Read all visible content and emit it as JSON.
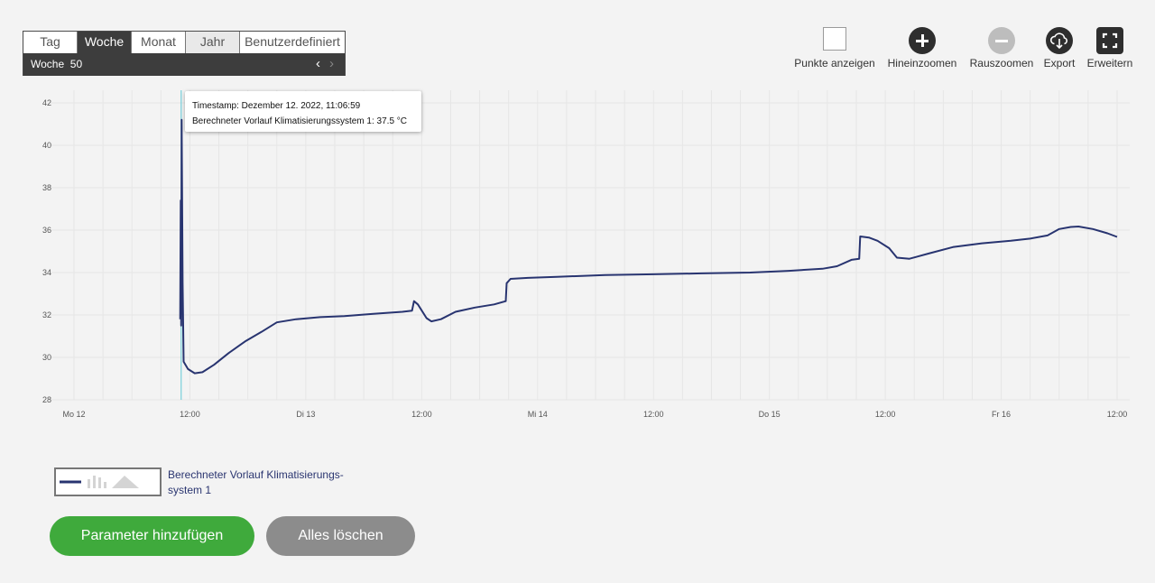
{
  "period_selector": {
    "tabs": [
      {
        "label": "Tag"
      },
      {
        "label": "Woche"
      },
      {
        "label": "Monat"
      },
      {
        "label": "Jahr"
      },
      {
        "label": "Benutzerdefiniert"
      }
    ],
    "active_tab": "Woche",
    "week_label": "Woche  50",
    "prev_glyph": "‹",
    "next_glyph": "›"
  },
  "toolbar": {
    "show_points_label": "Punkte anzeigen",
    "zoom_in_label": "Hineinzoomen",
    "zoom_out_label": "Rauszoomen",
    "export_label": "Export",
    "expand_label": "Erweitern",
    "icons": [
      "checkbox-icon",
      "plus-circle-icon",
      "minus-circle-icon",
      "cloud-download-icon",
      "fullscreen-icon"
    ]
  },
  "tooltip": {
    "timestamp": "Timestamp: Dezember 12. 2022, 11:06:59",
    "value": "Berechneter Vorlauf Klimatisierungssystem 1: 37.5 °C"
  },
  "legend": {
    "line1": "Berechneter Vorlauf Klimatisierungs-",
    "line2": "system 1"
  },
  "buttons": {
    "add_parameter": "Parameter hinzufügen",
    "clear_all": "Alles löschen"
  },
  "colors": {
    "series": "#283470",
    "cursor": "#5fc9d6",
    "accent_green": "#3faa3c",
    "button_grey": "#8c8c8c",
    "dark": "#3d3d3d"
  },
  "chart_data": {
    "type": "line",
    "xlabel": "",
    "ylabel": "",
    "ylim": [
      28,
      42
    ],
    "y_ticks": [
      "42",
      "40",
      "38",
      "36",
      "34",
      "32",
      "30",
      "28"
    ],
    "x_range_hours": [
      0,
      108
    ],
    "x_ticks": [
      {
        "label": "Mo 12",
        "h": 0
      },
      {
        "label": "12:00",
        "h": 12
      },
      {
        "label": "Di 13",
        "h": 24
      },
      {
        "label": "12:00",
        "h": 36
      },
      {
        "label": "Mi 14",
        "h": 48
      },
      {
        "label": "12:00",
        "h": 60
      },
      {
        "label": "Do 15",
        "h": 72
      },
      {
        "label": "12:00",
        "h": 84
      },
      {
        "label": "Fr 16",
        "h": 96
      },
      {
        "label": "12:00",
        "h": 108
      }
    ],
    "cursor_h": 11.1,
    "grid": true,
    "series": [
      {
        "name": "Berechneter Vorlauf Klimatisierungssystem 1",
        "points": [
          [
            11.0,
            31.8
          ],
          [
            11.05,
            37.4
          ],
          [
            11.1,
            31.5
          ],
          [
            11.15,
            41.2
          ],
          [
            11.25,
            33.5
          ],
          [
            11.35,
            29.8
          ],
          [
            11.8,
            29.45
          ],
          [
            12.5,
            29.25
          ],
          [
            13.3,
            29.3
          ],
          [
            14.5,
            29.65
          ],
          [
            16.0,
            30.2
          ],
          [
            17.7,
            30.75
          ],
          [
            19.4,
            31.2
          ],
          [
            21.0,
            31.65
          ],
          [
            23.0,
            31.8
          ],
          [
            25.5,
            31.9
          ],
          [
            28.0,
            31.95
          ],
          [
            31.0,
            32.05
          ],
          [
            34.0,
            32.15
          ],
          [
            35.0,
            32.2
          ],
          [
            35.2,
            32.65
          ],
          [
            35.6,
            32.5
          ],
          [
            36.5,
            31.85
          ],
          [
            37.0,
            31.7
          ],
          [
            38.0,
            31.8
          ],
          [
            39.5,
            32.15
          ],
          [
            41.5,
            32.35
          ],
          [
            43.5,
            32.5
          ],
          [
            44.7,
            32.65
          ],
          [
            44.8,
            33.5
          ],
          [
            45.2,
            33.7
          ],
          [
            47.0,
            33.75
          ],
          [
            50.0,
            33.8
          ],
          [
            55.0,
            33.88
          ],
          [
            60.0,
            33.92
          ],
          [
            65.0,
            33.96
          ],
          [
            70.0,
            34.0
          ],
          [
            74.0,
            34.08
          ],
          [
            77.5,
            34.18
          ],
          [
            79.0,
            34.3
          ],
          [
            80.5,
            34.6
          ],
          [
            81.3,
            34.65
          ],
          [
            81.4,
            35.7
          ],
          [
            82.3,
            35.65
          ],
          [
            83.2,
            35.5
          ],
          [
            84.4,
            35.15
          ],
          [
            85.2,
            34.7
          ],
          [
            86.5,
            34.65
          ],
          [
            88.5,
            34.9
          ],
          [
            91.0,
            35.2
          ],
          [
            94.0,
            35.38
          ],
          [
            97.0,
            35.5
          ],
          [
            99.0,
            35.6
          ],
          [
            100.8,
            35.75
          ],
          [
            102.0,
            36.05
          ],
          [
            103.2,
            36.15
          ],
          [
            104.0,
            36.17
          ],
          [
            105.5,
            36.05
          ],
          [
            107.0,
            35.85
          ],
          [
            108.0,
            35.68
          ]
        ]
      }
    ]
  }
}
